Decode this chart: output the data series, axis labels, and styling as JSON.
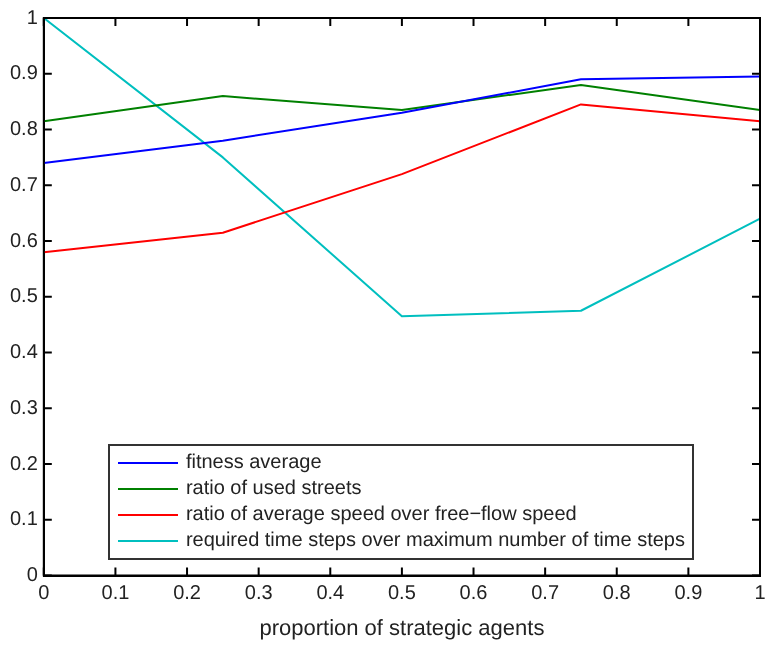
{
  "chart_data": {
    "type": "line",
    "xlabel": "proportion of strategic agents",
    "x": [
      0,
      0.25,
      0.5,
      0.75,
      1
    ],
    "series": [
      {
        "name": "fitness average",
        "color": "#0000ff",
        "values": [
          0.74,
          0.78,
          0.83,
          0.89,
          0.895
        ]
      },
      {
        "name": "ratio of used streets",
        "color": "#008000",
        "values": [
          0.815,
          0.86,
          0.835,
          0.88,
          0.835
        ]
      },
      {
        "name": "ratio of average speed over free−flow speed",
        "color": "#ff0000",
        "values": [
          0.58,
          0.615,
          0.72,
          0.845,
          0.815
        ]
      },
      {
        "name": "required time steps over maximum number of time steps",
        "color": "#00bfbf",
        "values": [
          1.0,
          0.75,
          0.465,
          0.475,
          0.64
        ]
      }
    ],
    "xlim": [
      0,
      1
    ],
    "xticks": [
      0,
      0.1,
      0.2,
      0.3,
      0.4,
      0.5,
      0.6,
      0.7,
      0.8,
      0.9,
      1
    ],
    "ylim": [
      0,
      1
    ],
    "yticks": [
      0,
      0.1,
      0.2,
      0.3,
      0.4,
      0.5,
      0.6,
      0.7,
      0.8,
      0.9,
      1
    ],
    "grid": false,
    "legend": "bottom",
    "marker": "none",
    "line_style": "solid"
  }
}
